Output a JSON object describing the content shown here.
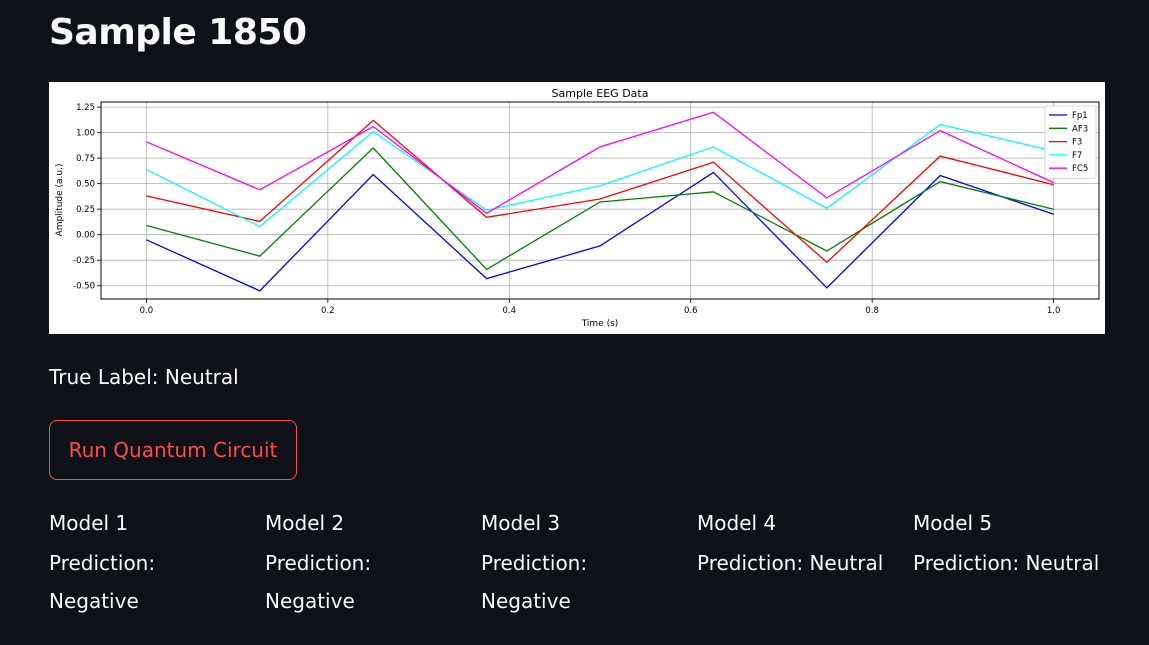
{
  "page": {
    "title": "Sample 1850"
  },
  "true_label_text": "True Label: Neutral",
  "run_button_label": "Run Quantum Circuit",
  "models": [
    {
      "name": "Model 1",
      "prediction": "Prediction: Negative"
    },
    {
      "name": "Model 2",
      "prediction": "Prediction: Negative"
    },
    {
      "name": "Model 3",
      "prediction": "Prediction: Negative"
    },
    {
      "name": "Model 4",
      "prediction": "Prediction: Neutral"
    },
    {
      "name": "Model 5",
      "prediction": "Prediction: Neutral"
    }
  ],
  "chart_data": {
    "type": "line",
    "title": "Sample EEG Data",
    "xlabel": "Time (s)",
    "ylabel": "Amplitude (a.u.)",
    "xlim": [
      -0.05,
      1.05
    ],
    "ylim": [
      -0.63,
      1.3
    ],
    "xticks": [
      "0.0",
      "0.2",
      "0.4",
      "0.6",
      "0.8",
      "1.0"
    ],
    "yticks": [
      "-0.50",
      "-0.25",
      "0.00",
      "0.25",
      "0.50",
      "0.75",
      "1.00",
      "1.25"
    ],
    "grid": true,
    "legend_position": "top-right",
    "x": [
      0.0,
      0.125,
      0.25,
      0.375,
      0.5,
      0.625,
      0.75,
      0.875,
      1.0
    ],
    "series": [
      {
        "name": "Fp1",
        "color": "#0000ff",
        "values": [
          -0.05,
          -0.55,
          0.59,
          -0.43,
          -0.11,
          0.61,
          -0.52,
          0.58,
          0.2
        ]
      },
      {
        "name": "AF3",
        "color": "#008000",
        "values": [
          0.09,
          -0.21,
          0.85,
          -0.34,
          0.32,
          0.42,
          -0.16,
          0.52,
          0.25
        ]
      },
      {
        "name": "F3",
        "color": "#ff0000",
        "values": [
          0.38,
          0.13,
          1.12,
          0.17,
          0.35,
          0.71,
          -0.27,
          0.77,
          0.49
        ]
      },
      {
        "name": "F7",
        "color": "#00ffff",
        "values": [
          0.64,
          0.08,
          1.01,
          0.24,
          0.48,
          0.86,
          0.26,
          1.08,
          0.82
        ]
      },
      {
        "name": "FC5",
        "color": "#ff00ff",
        "values": [
          0.91,
          0.44,
          1.06,
          0.21,
          0.86,
          1.2,
          0.36,
          1.02,
          0.51
        ]
      }
    ]
  }
}
